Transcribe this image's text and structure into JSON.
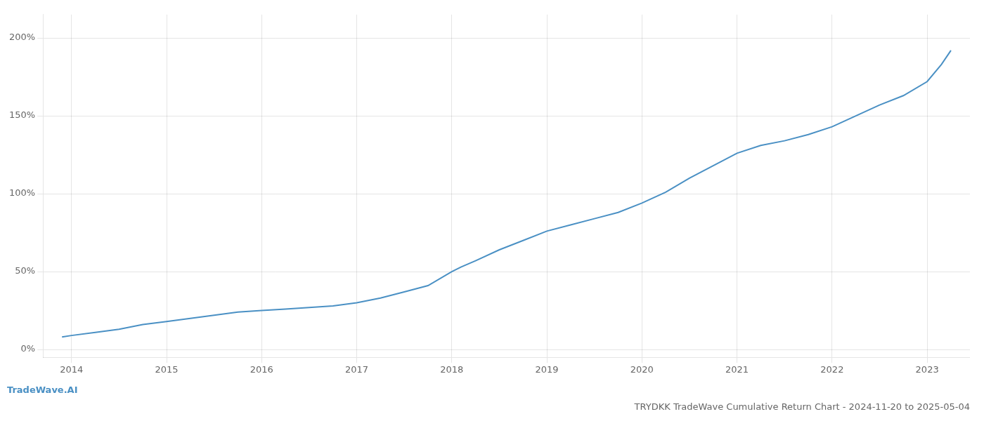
{
  "chart_data": {
    "type": "line",
    "title": "TRYDKK TradeWave Cumulative Return Chart - 2024-11-20 to 2025-05-04",
    "annotations": [
      "TradeWave.AI"
    ],
    "x": [
      2013.9,
      2014.0,
      2014.25,
      2014.5,
      2014.75,
      2015.0,
      2015.25,
      2015.5,
      2015.75,
      2016.0,
      2016.25,
      2016.5,
      2016.75,
      2017.0,
      2017.25,
      2017.5,
      2017.75,
      2018.0,
      2018.1,
      2018.25,
      2018.5,
      2018.75,
      2019.0,
      2019.25,
      2019.5,
      2019.75,
      2020.0,
      2020.25,
      2020.5,
      2020.75,
      2021.0,
      2021.25,
      2021.5,
      2021.75,
      2022.0,
      2022.25,
      2022.5,
      2022.75,
      2023.0,
      2023.15,
      2023.25
    ],
    "values": [
      8,
      9,
      11,
      13,
      16,
      18,
      20,
      22,
      24,
      25,
      26,
      27,
      28,
      30,
      33,
      37,
      41,
      50,
      53,
      57,
      64,
      70,
      76,
      80,
      84,
      88,
      94,
      101,
      110,
      118,
      126,
      131,
      134,
      138,
      143,
      150,
      157,
      163,
      172,
      183,
      192
    ],
    "color": "#4a90c4",
    "xlim": [
      2013.7,
      2023.45
    ],
    "ylim": [
      -5,
      215
    ],
    "xticks": [
      2014,
      2015,
      2016,
      2017,
      2018,
      2019,
      2020,
      2021,
      2022,
      2023
    ],
    "yticks": [
      {
        "value": 0,
        "label": "0%"
      },
      {
        "value": 50,
        "label": "50%"
      },
      {
        "value": 100,
        "label": "100%"
      },
      {
        "value": 150,
        "label": "150%"
      },
      {
        "value": 200,
        "label": "200%"
      }
    ],
    "grid": true
  }
}
